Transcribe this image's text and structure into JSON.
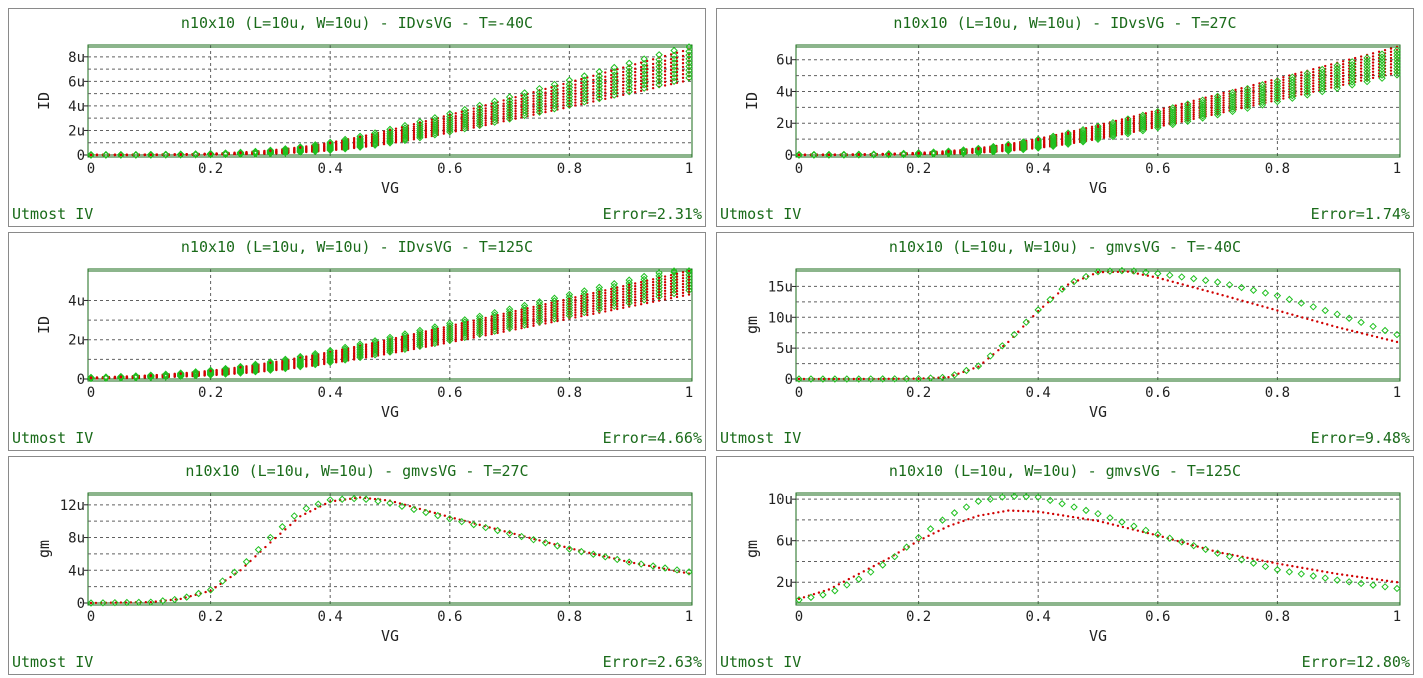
{
  "footer_left": "Utmost IV",
  "colors": {
    "frame": "#1a6b1a",
    "measured": "#1fc01f",
    "simulated": "#d00000",
    "grid": "#606060",
    "text": "#1a6b1a"
  },
  "chart_data": [
    {
      "type": "scatter",
      "title": "n10x10 (L=10u, W=10u) - IDvsVG - T=-40C",
      "xlabel": "VG",
      "ylabel": "ID",
      "xlim": [
        0,
        1
      ],
      "ylim": [
        0,
        8.8
      ],
      "xticks": [
        0,
        0.2,
        0.4,
        0.6,
        0.8,
        1
      ],
      "xticklabels": [
        "0",
        "0.2",
        "0.4",
        "0.6",
        "0.8",
        "1"
      ],
      "yticks": [
        0,
        2,
        4,
        6,
        8
      ],
      "yticklabels": [
        "0",
        "2u",
        "4u",
        "6u",
        "8u"
      ],
      "grid": true,
      "error": "Error=2.31%",
      "family": {
        "vth": [
          0.44,
          0.43,
          0.42,
          0.41,
          0.4,
          0.39,
          0.38,
          0.37,
          0.36
        ],
        "max": [
          6.1,
          6.4,
          6.7,
          7.0,
          7.3,
          7.6,
          7.9,
          8.2,
          8.6
        ],
        "width": 0.075,
        "meas_scale": 1.03
      }
    },
    {
      "type": "scatter",
      "title": "n10x10 (L=10u, W=10u) - IDvsVG - T=27C",
      "xlabel": "VG",
      "ylabel": "ID",
      "xlim": [
        0,
        1
      ],
      "ylim": [
        0,
        6.8
      ],
      "xticks": [
        0,
        0.2,
        0.4,
        0.6,
        0.8,
        1
      ],
      "xticklabels": [
        "0",
        "0.2",
        "0.4",
        "0.6",
        "0.8",
        "1"
      ],
      "yticks": [
        0,
        2,
        4,
        6
      ],
      "yticklabels": [
        "0",
        "2u",
        "4u",
        "6u"
      ],
      "grid": true,
      "error": "Error=1.74%",
      "family": {
        "vth": [
          0.4,
          0.39,
          0.38,
          0.37,
          0.36,
          0.35,
          0.34,
          0.33,
          0.32
        ],
        "max": [
          5.2,
          5.4,
          5.6,
          5.8,
          6.0,
          6.2,
          6.4,
          6.6,
          6.8
        ],
        "width": 0.075,
        "meas_scale": 0.97
      }
    },
    {
      "type": "scatter",
      "title": "n10x10 (L=10u, W=10u) - IDvsVG - T=125C",
      "xlabel": "VG",
      "ylabel": "ID",
      "xlim": [
        0,
        1
      ],
      "ylim": [
        0,
        5.5
      ],
      "xticks": [
        0,
        0.2,
        0.4,
        0.6,
        0.8,
        1
      ],
      "xticklabels": [
        "0",
        "0.2",
        "0.4",
        "0.6",
        "0.8",
        "1"
      ],
      "yticks": [
        0,
        2,
        4
      ],
      "yticklabels": [
        "0",
        "2u",
        "4u"
      ],
      "grid": true,
      "error": "Error=4.66%",
      "family": {
        "vth": [
          0.3,
          0.29,
          0.28,
          0.27,
          0.26,
          0.25,
          0.24,
          0.23,
          0.22
        ],
        "max": [
          4.3,
          4.45,
          4.6,
          4.75,
          4.9,
          5.05,
          5.2,
          5.35,
          5.5
        ],
        "width": 0.1,
        "meas_scale": 1.05
      }
    },
    {
      "type": "scatter",
      "title": "n10x10 (L=10u, W=10u) - gmvsVG - T=-40C",
      "xlabel": "VG",
      "ylabel": "gm",
      "xlim": [
        0,
        1
      ],
      "ylim": [
        0,
        17.5
      ],
      "xticks": [
        0,
        0.2,
        0.4,
        0.6,
        0.8,
        1
      ],
      "xticklabels": [
        "0",
        "0.2",
        "0.4",
        "0.6",
        "0.8",
        "1"
      ],
      "yticks": [
        0,
        5,
        10,
        15
      ],
      "yticklabels": [
        "0",
        "5u",
        "10u",
        "15u"
      ],
      "grid": true,
      "error": "Error=9.48%",
      "simulated": {
        "x": [
          0,
          0.1,
          0.2,
          0.25,
          0.3,
          0.35,
          0.4,
          0.45,
          0.5,
          0.55,
          0.6,
          0.7,
          0.8,
          0.9,
          1.0
        ],
        "y": [
          0,
          0,
          0.05,
          0.3,
          2.0,
          6.0,
          11.0,
          15.3,
          17.3,
          17.4,
          16.4,
          13.8,
          11.1,
          8.4,
          6.0
        ]
      },
      "measured": {
        "x": [
          0,
          0.1,
          0.2,
          0.25,
          0.3,
          0.35,
          0.4,
          0.45,
          0.5,
          0.55,
          0.6,
          0.7,
          0.8,
          0.9,
          1.0
        ],
        "y": [
          0,
          0,
          0.05,
          0.3,
          2.1,
          6.2,
          11.2,
          15.4,
          17.4,
          17.6,
          17.1,
          15.7,
          13.5,
          10.5,
          7.2
        ]
      }
    },
    {
      "type": "scatter",
      "title": "n10x10 (L=10u, W=10u) - gmvsVG - T=27C",
      "xlabel": "VG",
      "ylabel": "gm",
      "xlim": [
        0,
        1
      ],
      "ylim": [
        0,
        13.2
      ],
      "xticks": [
        0,
        0.2,
        0.4,
        0.6,
        0.8,
        1
      ],
      "xticklabels": [
        "0",
        "0.2",
        "0.4",
        "0.6",
        "0.8",
        "1"
      ],
      "yticks": [
        0,
        4,
        8,
        12
      ],
      "yticklabels": [
        "0",
        "4u",
        "8u",
        "12u"
      ],
      "grid": true,
      "error": "Error=2.63%",
      "simulated": {
        "x": [
          0,
          0.1,
          0.15,
          0.2,
          0.25,
          0.3,
          0.35,
          0.4,
          0.45,
          0.5,
          0.6,
          0.7,
          0.8,
          0.9,
          1.0
        ],
        "y": [
          0,
          0.1,
          0.5,
          1.5,
          4.0,
          7.4,
          10.6,
          12.4,
          12.9,
          12.5,
          10.5,
          8.6,
          6.7,
          5.0,
          3.6
        ]
      },
      "measured": {
        "x": [
          0,
          0.1,
          0.15,
          0.2,
          0.25,
          0.3,
          0.35,
          0.4,
          0.45,
          0.5,
          0.6,
          0.7,
          0.8,
          0.9,
          1.0
        ],
        "y": [
          0,
          0.1,
          0.5,
          1.6,
          4.3,
          8.0,
          11.3,
          12.6,
          12.8,
          12.2,
          10.3,
          8.5,
          6.6,
          5.0,
          3.8
        ]
      }
    },
    {
      "type": "scatter",
      "title": "n10x10 (L=10u, W=10u) - gmvsVG - T=125C",
      "xlabel": "VG",
      "ylabel": "gm",
      "xlim": [
        0,
        1
      ],
      "ylim": [
        0,
        10.4
      ],
      "xticks": [
        0,
        0.2,
        0.4,
        0.6,
        0.8,
        1
      ],
      "xticklabels": [
        "0",
        "0.2",
        "0.4",
        "0.6",
        "0.8",
        "1"
      ],
      "yticks": [
        2,
        6,
        10
      ],
      "yticklabels": [
        "2u",
        "6u",
        "10u"
      ],
      "grid": true,
      "error": "Error=12.80%",
      "simulated": {
        "x": [
          0,
          0.05,
          0.1,
          0.15,
          0.2,
          0.25,
          0.3,
          0.35,
          0.4,
          0.5,
          0.6,
          0.7,
          0.8,
          0.9,
          1.0
        ],
        "y": [
          0.4,
          1.3,
          2.8,
          4.3,
          6.0,
          7.4,
          8.4,
          8.9,
          8.8,
          7.9,
          6.5,
          4.9,
          3.8,
          2.8,
          2.0
        ]
      },
      "measured": {
        "x": [
          0,
          0.05,
          0.1,
          0.15,
          0.2,
          0.25,
          0.3,
          0.35,
          0.4,
          0.5,
          0.6,
          0.7,
          0.8,
          0.9,
          1.0
        ],
        "y": [
          0.3,
          0.9,
          2.3,
          4.0,
          6.3,
          8.4,
          9.8,
          10.3,
          10.2,
          8.6,
          6.6,
          4.8,
          3.2,
          2.2,
          1.4
        ]
      }
    }
  ]
}
